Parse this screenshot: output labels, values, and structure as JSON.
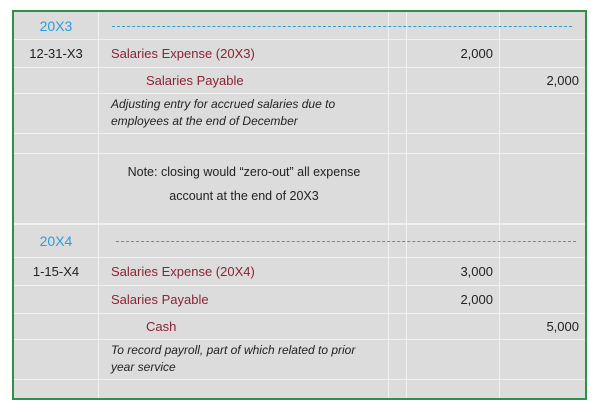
{
  "entries": [
    {
      "year": "20X3",
      "date": "12-31-X3",
      "lines": [
        {
          "account": "Salaries Expense (20X3)",
          "debit": "2,000",
          "credit": ""
        },
        {
          "account": "Salaries Payable",
          "debit": "",
          "credit": "2,000"
        }
      ],
      "description": [
        "Adjusting entry for accrued salaries due to",
        "employees at the end of December"
      ],
      "note": [
        "Note: closing would “zero-out” all expense",
        "account at the end of 20X3"
      ]
    },
    {
      "year": "20X4",
      "date": "1-15-X4",
      "lines": [
        {
          "account": "Salaries Expense (20X4)",
          "debit": "3,000",
          "credit": ""
        },
        {
          "account": "Salaries Payable",
          "debit": "2,000",
          "credit": ""
        },
        {
          "account": "Cash",
          "debit": "",
          "credit": "5,000"
        }
      ],
      "description": [
        "To record payroll, part of which related to prior",
        "year service"
      ]
    }
  ],
  "colors": {
    "border": "#2e9147",
    "year": "#2a9fd8",
    "account": "#8b2332",
    "background": "#dcdcdc"
  }
}
